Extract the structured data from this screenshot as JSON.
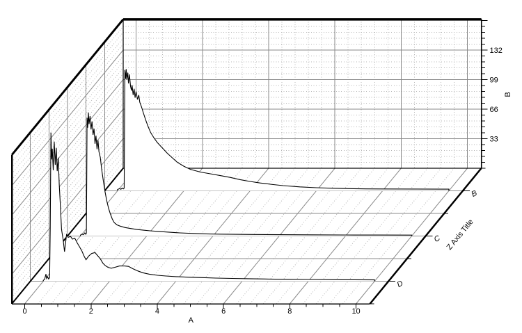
{
  "page": {
    "background": "#ffffff"
  },
  "chart_data": {
    "type": "line",
    "variant": "3d-waterfall",
    "title": "",
    "x_axis": {
      "title": "A",
      "ticks": [
        0,
        2,
        4,
        6,
        8,
        10
      ],
      "minor_tick_step": 0.5,
      "range": [
        -0.39,
        10.42
      ]
    },
    "y_axis": {
      "title": "B",
      "ticks": [
        33,
        66,
        99,
        132
      ],
      "minor_tick_step": 6.6,
      "range": [
        0,
        166.3
      ]
    },
    "z_axis": {
      "title": "Z Axis Title",
      "categories": [
        "B",
        "C",
        "D"
      ],
      "category_depths": [
        0.8333,
        0.5,
        0.1667
      ],
      "minor_depths": [
        0,
        0.3333,
        0.6667,
        1
      ]
    },
    "grid": {
      "major_color": "#8a8a8a",
      "minor_color": "#b4b4b4",
      "minor_x_step": 0.4,
      "minor_y_step": 6.6,
      "legend": "none"
    },
    "colors": {
      "curve": "#000000",
      "frame": "#000000",
      "fill": "#ffffff"
    },
    "series": [
      {
        "name": "B",
        "depth": 0.8333,
        "points": [
          [
            0,
            1.5
          ],
          [
            0.06,
            2.5
          ],
          [
            0.1,
            1.8
          ],
          [
            0.14,
            3
          ],
          [
            0.18,
            2.2
          ],
          [
            0.2,
            3
          ],
          [
            0.21,
            70
          ],
          [
            0.22,
            135
          ],
          [
            0.24,
            125
          ],
          [
            0.26,
            136
          ],
          [
            0.28,
            124
          ],
          [
            0.31,
            132
          ],
          [
            0.33,
            120
          ],
          [
            0.36,
            130
          ],
          [
            0.39,
            117
          ],
          [
            0.42,
            112
          ],
          [
            0.44,
            118
          ],
          [
            0.47,
            107
          ],
          [
            0.5,
            114
          ],
          [
            0.53,
            104
          ],
          [
            0.56,
            111
          ],
          [
            0.6,
            102
          ],
          [
            0.64,
            107
          ],
          [
            0.67,
            99
          ],
          [
            0.72,
            94
          ],
          [
            0.78,
            87
          ],
          [
            0.85,
            79
          ],
          [
            0.92,
            72
          ],
          [
            1.0,
            65
          ],
          [
            1.1,
            59
          ],
          [
            1.2,
            54
          ],
          [
            1.35,
            48
          ],
          [
            1.5,
            42
          ],
          [
            1.65,
            37
          ],
          [
            1.8,
            32
          ],
          [
            2.0,
            27.5
          ],
          [
            2.2,
            24
          ],
          [
            2.5,
            21
          ],
          [
            2.8,
            19
          ],
          [
            3.1,
            17
          ],
          [
            3.4,
            15
          ],
          [
            3.7,
            12.5
          ],
          [
            4.0,
            10.5
          ],
          [
            4.3,
            8.8
          ],
          [
            4.7,
            7
          ],
          [
            5.0,
            5.8
          ],
          [
            5.5,
            4.4
          ],
          [
            6.0,
            3.5
          ],
          [
            6.5,
            2.9
          ],
          [
            7.0,
            2.5
          ],
          [
            7.5,
            2.2
          ],
          [
            8.0,
            2.1
          ],
          [
            9.0,
            2.0
          ],
          [
            10.0,
            1.9
          ]
        ]
      },
      {
        "name": "C",
        "depth": 0.5,
        "points": [
          [
            0,
            1
          ],
          [
            0.05,
            2
          ],
          [
            0.09,
            1.5
          ],
          [
            0.13,
            3.5
          ],
          [
            0.16,
            2
          ],
          [
            0.18,
            3
          ],
          [
            0.19,
            60
          ],
          [
            0.2,
            132
          ],
          [
            0.22,
            121
          ],
          [
            0.24,
            138
          ],
          [
            0.26,
            125
          ],
          [
            0.29,
            134
          ],
          [
            0.32,
            119
          ],
          [
            0.35,
            128
          ],
          [
            0.38,
            113
          ],
          [
            0.41,
            120
          ],
          [
            0.44,
            103
          ],
          [
            0.47,
            112
          ],
          [
            0.5,
            97
          ],
          [
            0.53,
            107
          ],
          [
            0.56,
            94
          ],
          [
            0.6,
            88
          ],
          [
            0.64,
            75
          ],
          [
            0.69,
            62
          ],
          [
            0.74,
            50
          ],
          [
            0.79,
            40
          ],
          [
            0.85,
            31
          ],
          [
            0.9,
            25
          ],
          [
            0.96,
            19
          ],
          [
            1.02,
            15
          ],
          [
            1.1,
            12.5
          ],
          [
            1.2,
            11
          ],
          [
            1.35,
            9.5
          ],
          [
            1.5,
            8.5
          ],
          [
            1.7,
            7.3
          ],
          [
            1.9,
            6.5
          ],
          [
            2.1,
            5.8
          ],
          [
            2.4,
            5
          ],
          [
            2.7,
            4.2
          ],
          [
            3.0,
            3.5
          ],
          [
            3.4,
            2.9
          ],
          [
            3.8,
            2.4
          ],
          [
            4.2,
            2.1
          ],
          [
            4.7,
            1.9
          ],
          [
            5.2,
            1.7
          ],
          [
            6.0,
            1.5
          ],
          [
            7.0,
            1.3
          ],
          [
            8.0,
            1.15
          ],
          [
            9.0,
            1.05
          ],
          [
            10.0,
            1.0
          ]
        ]
      },
      {
        "name": "D",
        "depth": 0.1667,
        "points": [
          [
            0,
            1
          ],
          [
            0.04,
            2
          ],
          [
            0.08,
            8
          ],
          [
            0.1,
            3
          ],
          [
            0.13,
            5
          ],
          [
            0.16,
            2.5
          ],
          [
            0.19,
            4
          ],
          [
            0.21,
            60
          ],
          [
            0.23,
            166
          ],
          [
            0.25,
            136
          ],
          [
            0.27,
            148
          ],
          [
            0.3,
            124
          ],
          [
            0.33,
            156
          ],
          [
            0.36,
            130
          ],
          [
            0.39,
            149
          ],
          [
            0.42,
            123
          ],
          [
            0.45,
            138
          ],
          [
            0.48,
            108
          ],
          [
            0.51,
            88
          ],
          [
            0.55,
            58
          ],
          [
            0.6,
            46
          ],
          [
            0.64,
            33
          ],
          [
            0.67,
            42
          ],
          [
            0.7,
            52
          ],
          [
            0.75,
            49
          ],
          [
            0.82,
            50
          ],
          [
            0.88,
            47
          ],
          [
            0.95,
            48
          ],
          [
            1.02,
            43
          ],
          [
            1.1,
            38
          ],
          [
            1.16,
            34
          ],
          [
            1.23,
            28
          ],
          [
            1.29,
            24
          ],
          [
            1.37,
            28
          ],
          [
            1.46,
            31
          ],
          [
            1.56,
            32
          ],
          [
            1.65,
            28
          ],
          [
            1.72,
            25
          ],
          [
            1.8,
            20
          ],
          [
            1.87,
            17.5
          ],
          [
            1.95,
            15.5
          ],
          [
            2.05,
            14.5
          ],
          [
            2.16,
            15.5
          ],
          [
            2.3,
            17
          ],
          [
            2.45,
            17
          ],
          [
            2.57,
            16.5
          ],
          [
            2.7,
            14
          ],
          [
            2.85,
            11.5
          ],
          [
            3.0,
            9.5
          ],
          [
            3.2,
            7.8
          ],
          [
            3.45,
            6.6
          ],
          [
            3.7,
            5.8
          ],
          [
            4.0,
            5.1
          ],
          [
            4.4,
            4.4
          ],
          [
            4.8,
            4.0
          ],
          [
            5.2,
            3.5
          ],
          [
            5.7,
            3.1
          ],
          [
            6.2,
            2.8
          ],
          [
            6.8,
            2.4
          ],
          [
            7.4,
            2.1
          ],
          [
            8.0,
            1.9
          ],
          [
            9.0,
            1.6
          ],
          [
            10.0,
            1.5
          ]
        ]
      }
    ]
  }
}
